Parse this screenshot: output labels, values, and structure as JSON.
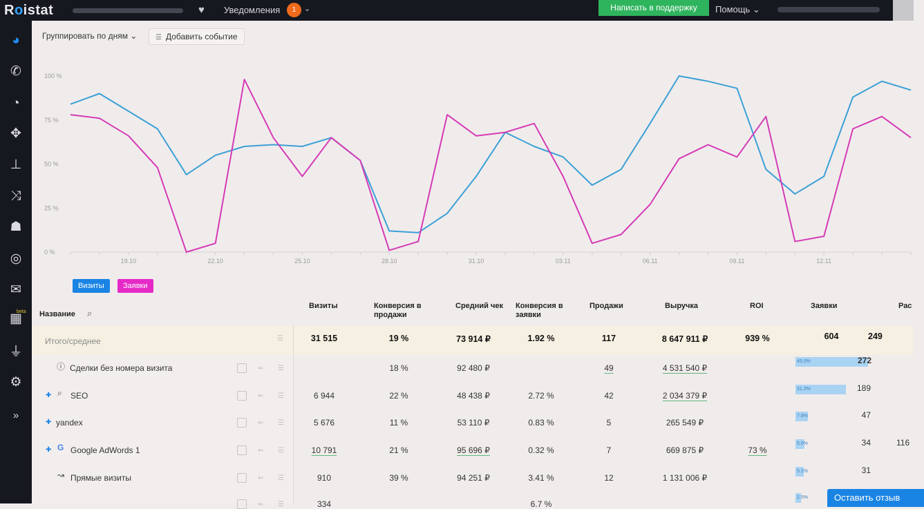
{
  "topbar": {
    "logo_pre": "R",
    "logo_o": "o",
    "logo_post": "istat",
    "notifications_label": "Уведомления",
    "notifications_count": "1",
    "support_label": "Написать в поддержку",
    "help_label": "Помощь"
  },
  "sidebar": {
    "icons": [
      "globe-icon",
      "phone-icon",
      "dashboard-icon",
      "crosshair-icon",
      "sitemap-icon",
      "shuffle-icon",
      "users-icon",
      "target-icon",
      "mail-icon",
      "qr-icon",
      "plug-icon",
      "gear-icon",
      "expand-icon"
    ],
    "beta_label": "beta"
  },
  "toolbar": {
    "group_label": "Группировать по дням",
    "add_event_label": "Добавить событие"
  },
  "chart_data": {
    "type": "line",
    "y_ticks": [
      "100 %",
      "75 %",
      "50 %",
      "25 %",
      "0 %"
    ],
    "x_ticks": [
      "19.10",
      "22.10",
      "25.10",
      "28.10",
      "31.10",
      "03.11",
      "06.11",
      "09.11",
      "12.11"
    ],
    "x": [
      "17.10",
      "18.10",
      "19.10",
      "20.10",
      "21.10",
      "22.10",
      "23.10",
      "24.10",
      "25.10",
      "26.10",
      "27.10",
      "28.10",
      "29.10",
      "30.10",
      "31.10",
      "01.11",
      "02.11",
      "03.11",
      "04.11",
      "05.11",
      "06.11",
      "07.11",
      "08.11",
      "09.11",
      "10.11",
      "11.11",
      "12.11",
      "13.11",
      "14.11",
      "15.11"
    ],
    "ylim": [
      0,
      100
    ],
    "series": [
      {
        "name": "Визиты",
        "color": "#3aa0d6",
        "values": [
          84,
          90,
          80,
          70,
          44,
          55,
          60,
          61,
          60,
          65,
          52,
          12,
          11,
          22,
          43,
          68,
          60,
          54,
          38,
          47,
          73,
          100,
          97,
          93,
          47,
          33,
          43,
          88,
          97,
          92
        ]
      },
      {
        "name": "Заявки",
        "color": "#d43ab5",
        "values": [
          78,
          76,
          66,
          48,
          0,
          5,
          98,
          65,
          43,
          65,
          52,
          1,
          6,
          78,
          66,
          68,
          73,
          43,
          5,
          10,
          27,
          53,
          61,
          54,
          77,
          6,
          9,
          70,
          77,
          65
        ]
      }
    ]
  },
  "table": {
    "name_header": "Название",
    "headers": [
      "Визиты",
      "Конверсия в продажи",
      "Средний чек",
      "Конверсия в заявки",
      "Продажи",
      "Выручка",
      "ROI",
      "Заявки",
      "Рас"
    ],
    "total": {
      "name": "Итого/среднее",
      "visits": "31 515",
      "conv_sales": "19 %",
      "avg_check": "73 914 ₽",
      "conv_leads": "1.92 %",
      "sales": "117",
      "revenue": "8 647 911 ₽",
      "roi": "939 %",
      "leads": "604",
      "extra": "249"
    },
    "rows": [
      {
        "name": "Сделки без номера визита",
        "icon": "question-icon",
        "visits": "",
        "conv_sales": "18 %",
        "avg_check": "92 480 ₽",
        "conv_leads": "",
        "sales": "49",
        "revenue": "4 531 540 ₽",
        "roi": "",
        "lead_share": "45.0%",
        "lead_fraction": 0.45,
        "leads": "272",
        "extra": ""
      },
      {
        "name": "SEO",
        "icon": "search-icon",
        "visits": "6 944",
        "conv_sales": "22 %",
        "avg_check": "48 438 ₽",
        "conv_leads": "2.72 %",
        "sales": "42",
        "revenue": "2 034 379 ₽",
        "roi": "",
        "lead_share": "31.3%",
        "lead_fraction": 0.313,
        "leads": "189",
        "extra": ""
      },
      {
        "name": "yandex",
        "icon": "",
        "visits": "5 676",
        "conv_sales": "11 %",
        "avg_check": "53 110 ₽",
        "conv_leads": "0.83 %",
        "sales": "5",
        "revenue": "265 549 ₽",
        "roi": "",
        "lead_share": "7.8%",
        "lead_fraction": 0.078,
        "leads": "47",
        "extra": ""
      },
      {
        "name": "Google AdWords 1",
        "icon": "google-icon",
        "visits": "10 791",
        "conv_sales": "21 %",
        "avg_check": "95 696 ₽",
        "conv_leads": "0.32 %",
        "sales": "7",
        "revenue": "669 875 ₽",
        "roi": "73 %",
        "lead_share": "5.6%",
        "lead_fraction": 0.056,
        "leads": "34",
        "extra": "116"
      },
      {
        "name": "Прямые визиты",
        "icon": "direct-icon",
        "visits": "910",
        "conv_sales": "39 %",
        "avg_check": "94 251 ₽",
        "conv_leads": "3.41 %",
        "sales": "12",
        "revenue": "1 131 006 ₽",
        "roi": "",
        "lead_share": "5.1%",
        "lead_fraction": 0.051,
        "leads": "31",
        "extra": ""
      },
      {
        "name": "",
        "icon": "",
        "visits": "334",
        "conv_sales": "",
        "avg_check": "",
        "conv_leads": "6.7 %",
        "sales": "",
        "revenue": "",
        "roi": "",
        "lead_share": "2.5%",
        "lead_fraction": 0.025,
        "leads": "",
        "extra": ""
      }
    ]
  },
  "legend": {
    "visits_label": "Визиты",
    "leads_label": "Заявки"
  },
  "feedback_label": "Оставить отзыв"
}
